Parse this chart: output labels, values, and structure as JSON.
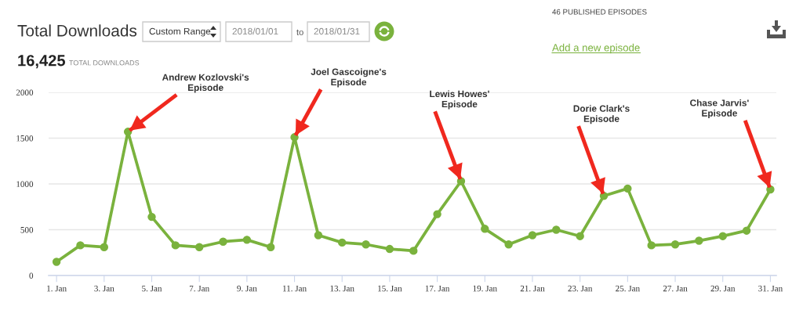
{
  "chart_data": {
    "type": "line",
    "title": "Total Downloads",
    "annotations": [
      "Custom Range",
      "2018/01/01",
      "to",
      "2018/01/31",
      "16,425",
      "TOTAL DOWNLOADS",
      "46 PUBLISHED EPISODES",
      "Add a new episode",
      {
        "text": "Andrew Kozlovski's\nEpisode",
        "x": "2018-01-04",
        "y": 1570
      },
      {
        "text": "Joel Gascoigne's\nEpisode",
        "x": "2018-01-11",
        "y": 1510
      },
      {
        "text": "Lewis Howes'\nEpisode",
        "x": "2018-01-18",
        "y": 1030
      },
      {
        "text": "Dorie Clark's\nEpisode",
        "x": "2018-01-24",
        "y": 870
      },
      {
        "text": "Chase Jarvis'\nEpisode",
        "x": "2018-01-31",
        "y": 940
      }
    ],
    "x": [
      "2018-01-01",
      "2018-01-02",
      "2018-01-03",
      "2018-01-04",
      "2018-01-05",
      "2018-01-06",
      "2018-01-07",
      "2018-01-08",
      "2018-01-09",
      "2018-01-10",
      "2018-01-11",
      "2018-01-12",
      "2018-01-13",
      "2018-01-14",
      "2018-01-15",
      "2018-01-16",
      "2018-01-17",
      "2018-01-18",
      "2018-01-19",
      "2018-01-20",
      "2018-01-21",
      "2018-01-22",
      "2018-01-23",
      "2018-01-24",
      "2018-01-25",
      "2018-01-26",
      "2018-01-27",
      "2018-01-28",
      "2018-01-29",
      "2018-01-30",
      "2018-01-31"
    ],
    "series": [
      {
        "color": "#7ab23d",
        "values": [
          150,
          330,
          310,
          1570,
          640,
          330,
          310,
          370,
          390,
          310,
          1510,
          440,
          360,
          340,
          290,
          270,
          670,
          1030,
          510,
          340,
          440,
          500,
          430,
          870,
          950,
          330,
          340,
          380,
          430,
          490,
          940
        ]
      }
    ],
    "xlim": [
      "2017-12-31T16:00",
      "2018-01-31T06:00"
    ],
    "xticks": [
      {
        "value": "2018-01-01",
        "label": "1. Jan"
      },
      {
        "value": "2018-01-03",
        "label": "3. Jan"
      },
      {
        "value": "2018-01-05",
        "label": "5. Jan"
      },
      {
        "value": "2018-01-07",
        "label": "7. Jan"
      },
      {
        "value": "2018-01-09",
        "label": "9. Jan"
      },
      {
        "value": "2018-01-11",
        "label": "11. Jan"
      },
      {
        "value": "2018-01-13",
        "label": "13. Jan"
      },
      {
        "value": "2018-01-15",
        "label": "15. Jan"
      },
      {
        "value": "2018-01-17",
        "label": "17. Jan"
      },
      {
        "value": "2018-01-19",
        "label": "19. Jan"
      },
      {
        "value": "2018-01-21",
        "label": "21. Jan"
      },
      {
        "value": "2018-01-23",
        "label": "23. Jan"
      },
      {
        "value": "2018-01-25",
        "label": "25. Jan"
      },
      {
        "value": "2018-01-27",
        "label": "27. Jan"
      },
      {
        "value": "2018-01-29",
        "label": "29. Jan"
      },
      {
        "value": "2018-01-31",
        "label": "31. Jan"
      }
    ],
    "ylim": [
      0,
      2000
    ],
    "yticks": [
      0,
      500,
      1000,
      1500,
      2000
    ],
    "grid": "y",
    "marker": "circle",
    "line_style": "solid"
  }
}
